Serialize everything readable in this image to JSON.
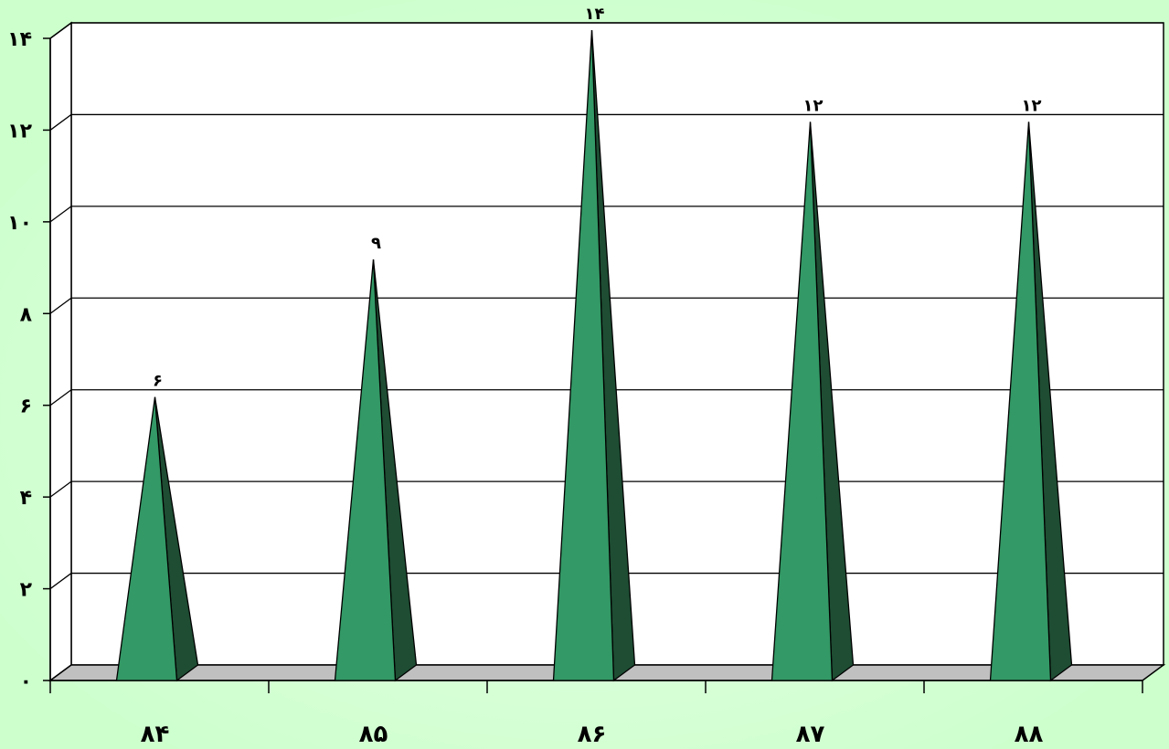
{
  "chart_data": {
    "type": "bar",
    "style": "3d-pyramid",
    "categories": [
      "۸۴",
      "۸۵",
      "۸۶",
      "۸۷",
      "۸۸"
    ],
    "values": [
      6,
      9,
      14,
      12,
      12
    ],
    "value_labels": [
      "۶",
      "۹",
      "۱۴",
      "۱۲",
      "۱۲"
    ],
    "y_ticks": [
      0,
      2,
      4,
      6,
      8,
      10,
      12,
      14
    ],
    "y_tick_labels": [
      "۰",
      "۲",
      "۴",
      "۶",
      "۸",
      "۱۰",
      "۱۲",
      "۱۴"
    ],
    "ylim": [
      0,
      14
    ],
    "grid": true,
    "legend": "none",
    "colors": {
      "background": "#ccffcc",
      "plot_area": "#ffffff",
      "floor": "#c0c0c0",
      "bar_front": "#339966",
      "bar_side": "#1e4d33",
      "grid": "#000000"
    }
  }
}
